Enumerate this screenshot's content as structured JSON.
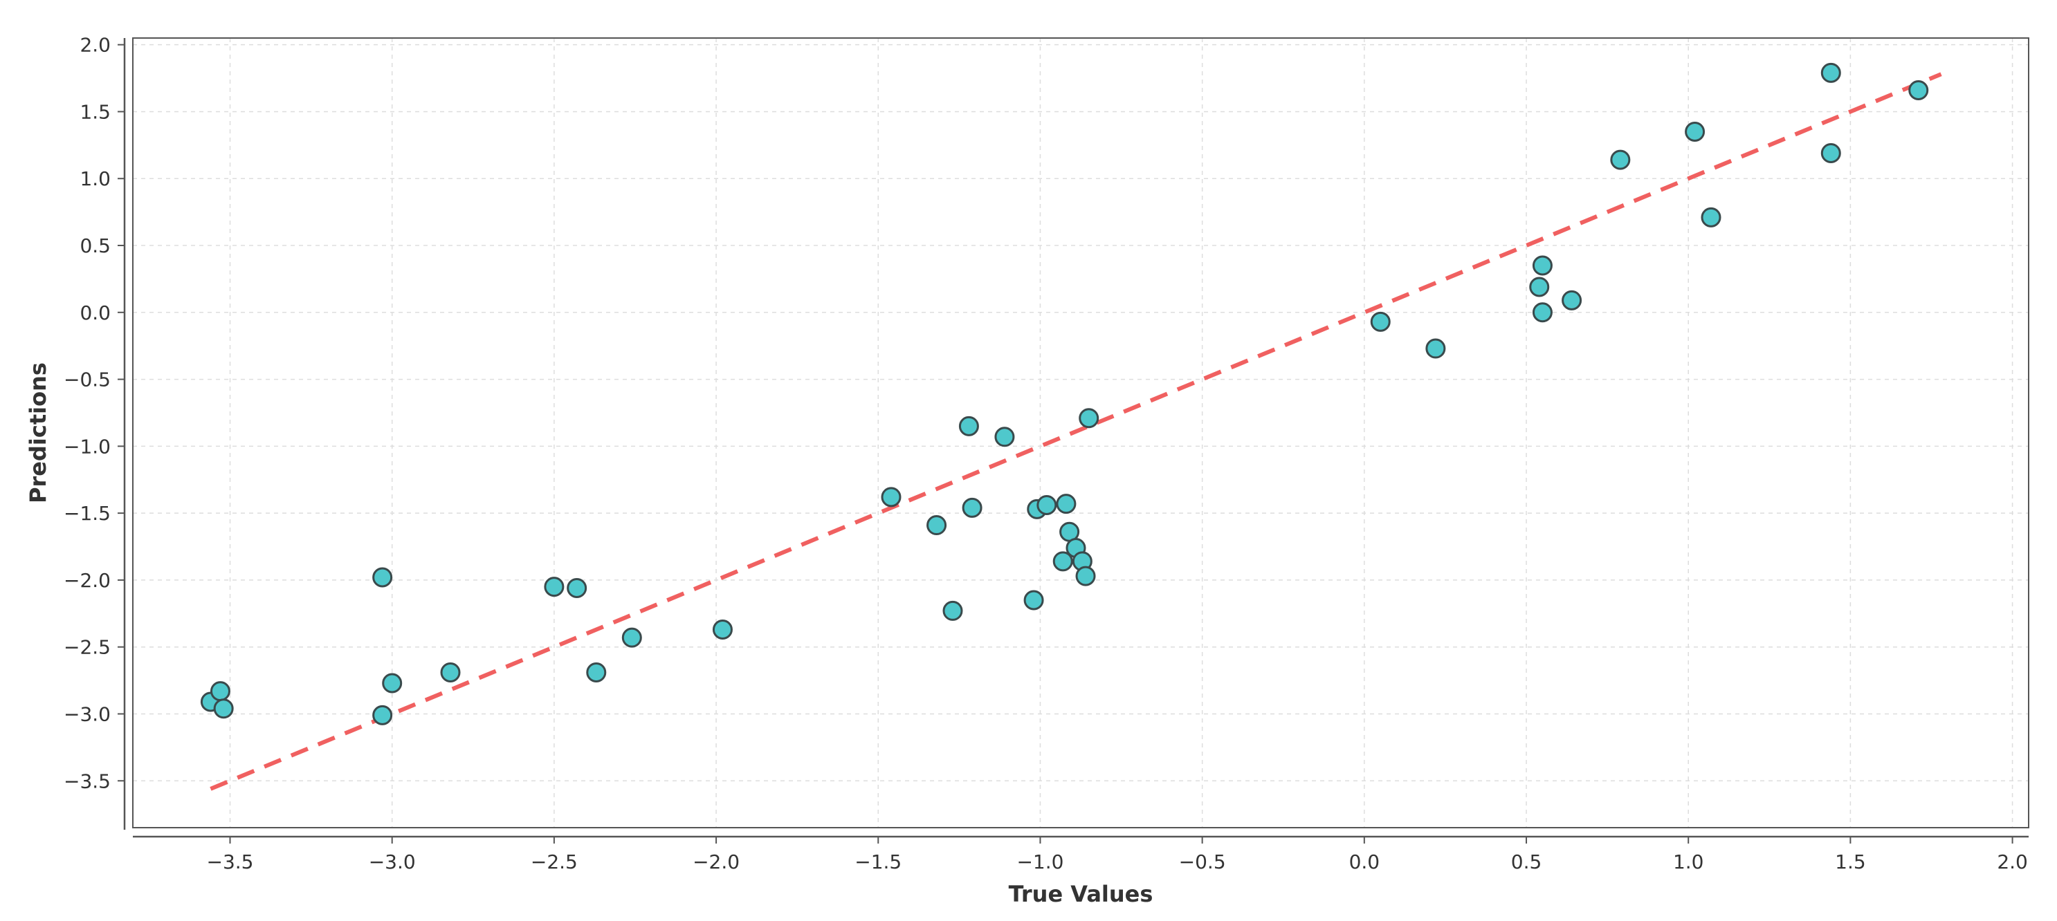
{
  "chart_data": {
    "type": "scatter",
    "xlabel": "True Values",
    "ylabel": "Predictions",
    "xlim": [
      -3.8,
      2.05
    ],
    "ylim": [
      -3.85,
      2.05
    ],
    "xticks": [
      -3.5,
      -3.0,
      -2.5,
      -2.0,
      -1.5,
      -1.0,
      -0.5,
      0.0,
      0.5,
      1.0,
      1.5,
      2.0
    ],
    "yticks": [
      -3.5,
      -3.0,
      -2.5,
      -2.0,
      -1.5,
      -1.0,
      -0.5,
      0.0,
      0.5,
      1.0,
      1.5,
      2.0
    ],
    "grid": true,
    "legend": "none",
    "colors": {
      "point_fill": "#4fc8cc",
      "point_stroke": "#3a4a4c",
      "reference_line": "#f06060",
      "frame": "#555555",
      "grid": "#dddddd"
    },
    "reference_line": {
      "style": "dashed",
      "x": [
        -3.56,
        1.78
      ],
      "y": [
        -3.56,
        1.78
      ]
    },
    "points": {
      "x": [
        -3.56,
        -3.53,
        -3.52,
        -3.03,
        -3.03,
        -3.0,
        -2.82,
        -2.5,
        -2.43,
        -2.37,
        -2.26,
        -1.98,
        -1.46,
        -1.32,
        -1.27,
        -1.22,
        -1.21,
        -1.11,
        -1.02,
        -1.01,
        -0.98,
        -0.93,
        -0.92,
        -0.91,
        -0.89,
        -0.87,
        -0.86,
        -0.85,
        0.05,
        0.22,
        0.54,
        0.55,
        0.55,
        0.64,
        0.79,
        1.02,
        1.07,
        1.44,
        1.44,
        1.71
      ],
      "y": [
        -2.91,
        -2.83,
        -2.96,
        -1.98,
        -3.01,
        -2.77,
        -2.69,
        -2.05,
        -2.06,
        -2.69,
        -2.43,
        -2.37,
        -1.38,
        -1.59,
        -2.23,
        -0.85,
        -1.46,
        -0.93,
        -2.15,
        -1.47,
        -1.44,
        -1.86,
        -1.43,
        -1.64,
        -1.76,
        -1.86,
        -1.97,
        -0.79,
        -0.07,
        -0.27,
        0.19,
        0.35,
        0.0,
        0.09,
        1.14,
        1.35,
        0.71,
        1.79,
        1.19,
        1.66
      ]
    }
  }
}
